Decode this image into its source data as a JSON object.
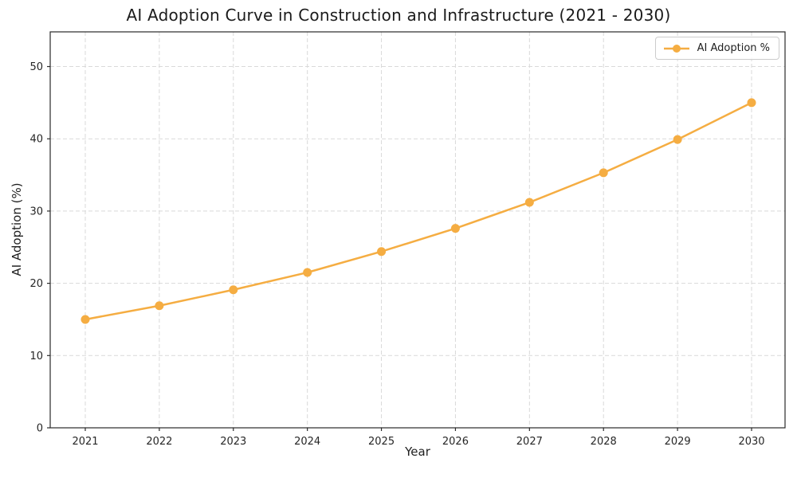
{
  "chart_data": {
    "type": "line",
    "title": "AI Adoption Curve in Construction and Infrastructure (2021 - 2030)",
    "xlabel": "Year",
    "ylabel": "AI Adoption (%)",
    "categories": [
      "2021",
      "2022",
      "2023",
      "2024",
      "2025",
      "2026",
      "2027",
      "2028",
      "2029",
      "2030"
    ],
    "series": [
      {
        "name": "AI Adoption %",
        "values": [
          15.0,
          16.9,
          19.1,
          21.5,
          24.4,
          27.6,
          31.2,
          35.3,
          39.9,
          45.0
        ]
      }
    ],
    "yticks": [
      0,
      10,
      20,
      30,
      40,
      50
    ],
    "ylim": [
      0,
      54.8
    ],
    "grid": true,
    "grid_style": "dashed",
    "legend_position": "upper right",
    "line_color": "#F5AD42",
    "grid_color": "#d9d9d9",
    "spine_color": "#2a2a2a",
    "text_color": "#262626"
  }
}
